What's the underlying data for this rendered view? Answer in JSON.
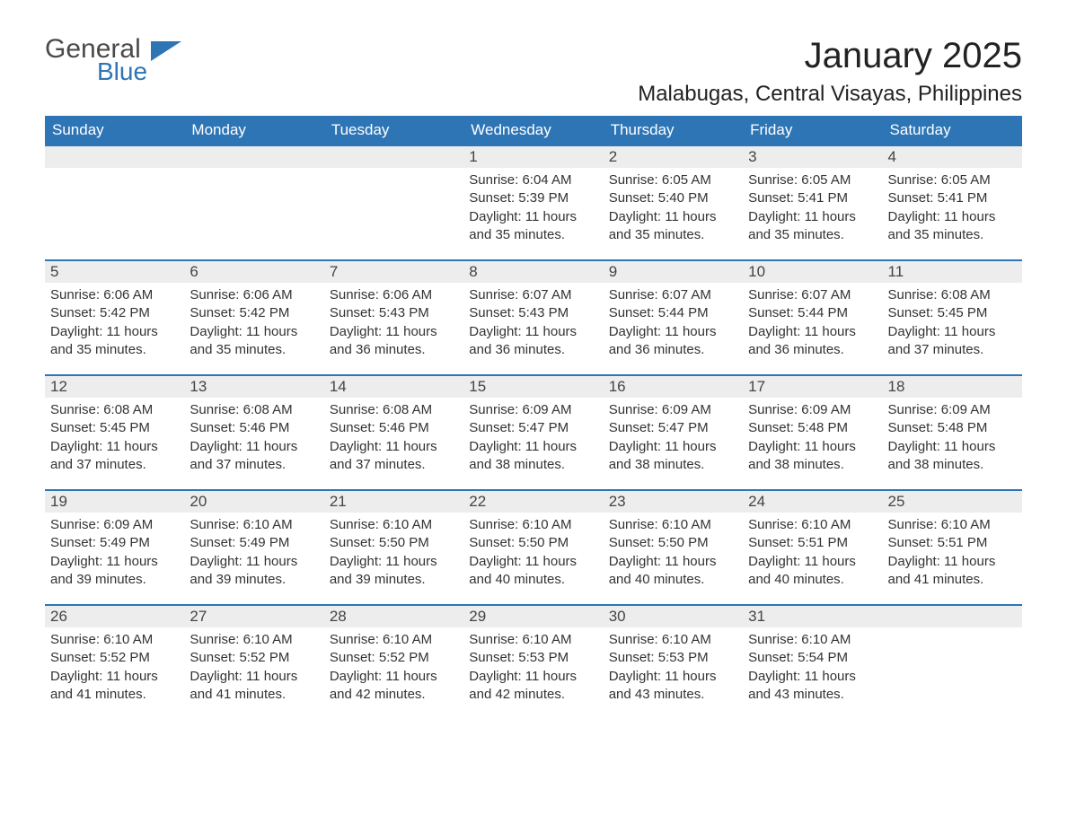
{
  "logo": {
    "line1": "General",
    "line2": "Blue",
    "flag_color": "#2e75b6",
    "text1_color": "#4a4a4a",
    "text2_color": "#2e75b6"
  },
  "title": "January 2025",
  "location": "Malabugas, Central Visayas, Philippines",
  "colors": {
    "header_bg": "#2e75b6",
    "header_text": "#ffffff",
    "daynum_bg": "#ededed",
    "border": "#2e75b6",
    "body_text": "#333333"
  },
  "weekdays": [
    "Sunday",
    "Monday",
    "Tuesday",
    "Wednesday",
    "Thursday",
    "Friday",
    "Saturday"
  ],
  "labels": {
    "sunrise": "Sunrise",
    "sunset": "Sunset",
    "daylight": "Daylight"
  },
  "weeks": [
    [
      null,
      null,
      null,
      {
        "day": 1,
        "sunrise": "6:04 AM",
        "sunset": "5:39 PM",
        "daylight": "11 hours and 35 minutes."
      },
      {
        "day": 2,
        "sunrise": "6:05 AM",
        "sunset": "5:40 PM",
        "daylight": "11 hours and 35 minutes."
      },
      {
        "day": 3,
        "sunrise": "6:05 AM",
        "sunset": "5:41 PM",
        "daylight": "11 hours and 35 minutes."
      },
      {
        "day": 4,
        "sunrise": "6:05 AM",
        "sunset": "5:41 PM",
        "daylight": "11 hours and 35 minutes."
      }
    ],
    [
      {
        "day": 5,
        "sunrise": "6:06 AM",
        "sunset": "5:42 PM",
        "daylight": "11 hours and 35 minutes."
      },
      {
        "day": 6,
        "sunrise": "6:06 AM",
        "sunset": "5:42 PM",
        "daylight": "11 hours and 35 minutes."
      },
      {
        "day": 7,
        "sunrise": "6:06 AM",
        "sunset": "5:43 PM",
        "daylight": "11 hours and 36 minutes."
      },
      {
        "day": 8,
        "sunrise": "6:07 AM",
        "sunset": "5:43 PM",
        "daylight": "11 hours and 36 minutes."
      },
      {
        "day": 9,
        "sunrise": "6:07 AM",
        "sunset": "5:44 PM",
        "daylight": "11 hours and 36 minutes."
      },
      {
        "day": 10,
        "sunrise": "6:07 AM",
        "sunset": "5:44 PM",
        "daylight": "11 hours and 36 minutes."
      },
      {
        "day": 11,
        "sunrise": "6:08 AM",
        "sunset": "5:45 PM",
        "daylight": "11 hours and 37 minutes."
      }
    ],
    [
      {
        "day": 12,
        "sunrise": "6:08 AM",
        "sunset": "5:45 PM",
        "daylight": "11 hours and 37 minutes."
      },
      {
        "day": 13,
        "sunrise": "6:08 AM",
        "sunset": "5:46 PM",
        "daylight": "11 hours and 37 minutes."
      },
      {
        "day": 14,
        "sunrise": "6:08 AM",
        "sunset": "5:46 PM",
        "daylight": "11 hours and 37 minutes."
      },
      {
        "day": 15,
        "sunrise": "6:09 AM",
        "sunset": "5:47 PM",
        "daylight": "11 hours and 38 minutes."
      },
      {
        "day": 16,
        "sunrise": "6:09 AM",
        "sunset": "5:47 PM",
        "daylight": "11 hours and 38 minutes."
      },
      {
        "day": 17,
        "sunrise": "6:09 AM",
        "sunset": "5:48 PM",
        "daylight": "11 hours and 38 minutes."
      },
      {
        "day": 18,
        "sunrise": "6:09 AM",
        "sunset": "5:48 PM",
        "daylight": "11 hours and 38 minutes."
      }
    ],
    [
      {
        "day": 19,
        "sunrise": "6:09 AM",
        "sunset": "5:49 PM",
        "daylight": "11 hours and 39 minutes."
      },
      {
        "day": 20,
        "sunrise": "6:10 AM",
        "sunset": "5:49 PM",
        "daylight": "11 hours and 39 minutes."
      },
      {
        "day": 21,
        "sunrise": "6:10 AM",
        "sunset": "5:50 PM",
        "daylight": "11 hours and 39 minutes."
      },
      {
        "day": 22,
        "sunrise": "6:10 AM",
        "sunset": "5:50 PM",
        "daylight": "11 hours and 40 minutes."
      },
      {
        "day": 23,
        "sunrise": "6:10 AM",
        "sunset": "5:50 PM",
        "daylight": "11 hours and 40 minutes."
      },
      {
        "day": 24,
        "sunrise": "6:10 AM",
        "sunset": "5:51 PM",
        "daylight": "11 hours and 40 minutes."
      },
      {
        "day": 25,
        "sunrise": "6:10 AM",
        "sunset": "5:51 PM",
        "daylight": "11 hours and 41 minutes."
      }
    ],
    [
      {
        "day": 26,
        "sunrise": "6:10 AM",
        "sunset": "5:52 PM",
        "daylight": "11 hours and 41 minutes."
      },
      {
        "day": 27,
        "sunrise": "6:10 AM",
        "sunset": "5:52 PM",
        "daylight": "11 hours and 41 minutes."
      },
      {
        "day": 28,
        "sunrise": "6:10 AM",
        "sunset": "5:52 PM",
        "daylight": "11 hours and 42 minutes."
      },
      {
        "day": 29,
        "sunrise": "6:10 AM",
        "sunset": "5:53 PM",
        "daylight": "11 hours and 42 minutes."
      },
      {
        "day": 30,
        "sunrise": "6:10 AM",
        "sunset": "5:53 PM",
        "daylight": "11 hours and 43 minutes."
      },
      {
        "day": 31,
        "sunrise": "6:10 AM",
        "sunset": "5:54 PM",
        "daylight": "11 hours and 43 minutes."
      },
      null
    ]
  ]
}
